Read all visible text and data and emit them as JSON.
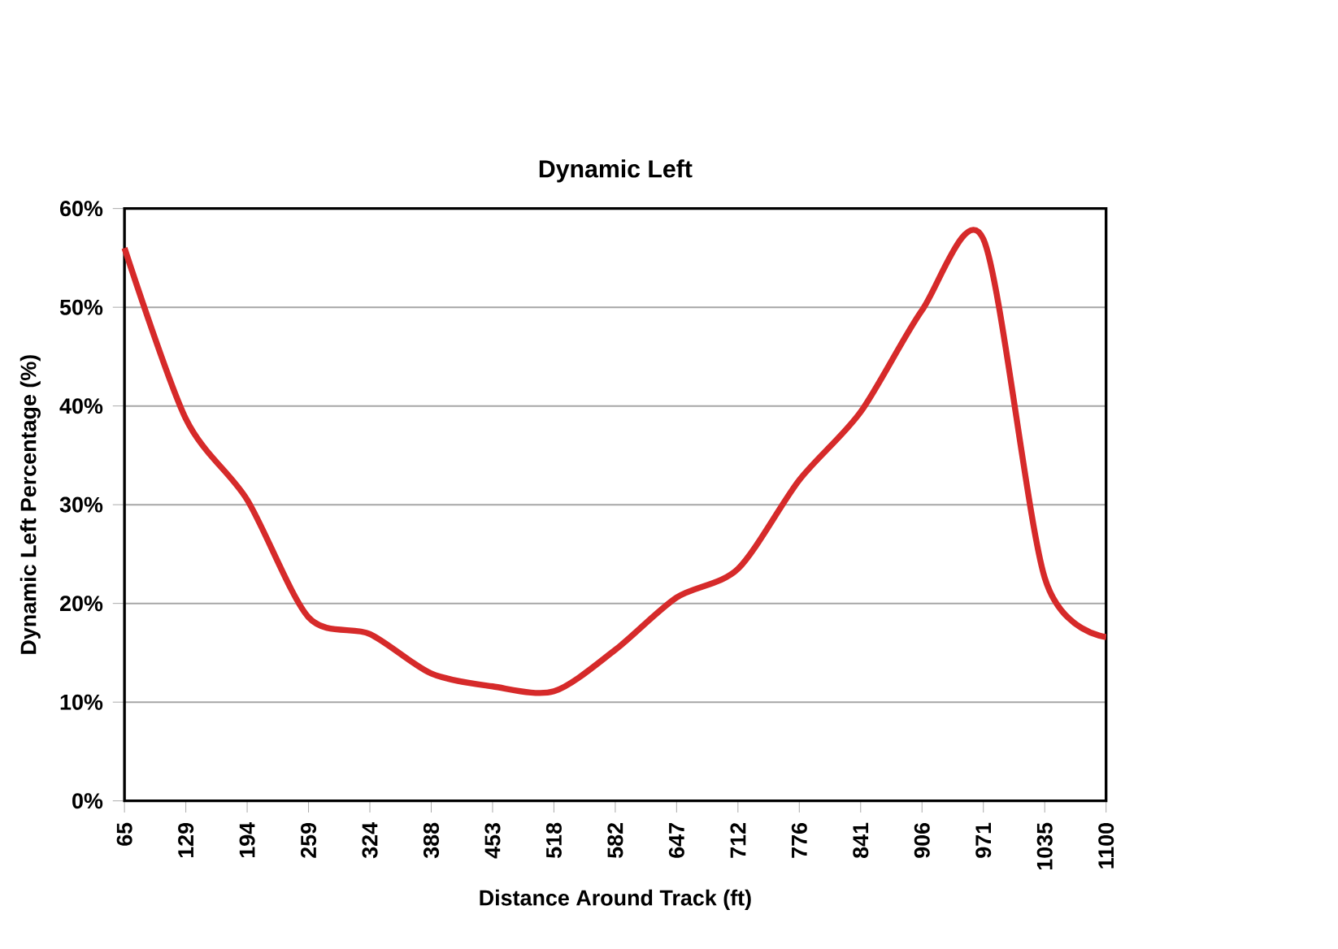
{
  "chart_data": {
    "type": "line",
    "title": "Dynamic Left",
    "xlabel": "Distance Around Track (ft)",
    "ylabel": "Dynamic Left Percentage (%)",
    "categories": [
      "65",
      "129",
      "194",
      "259",
      "324",
      "388",
      "453",
      "518",
      "582",
      "647",
      "712",
      "776",
      "841",
      "906",
      "971",
      "1035",
      "1100"
    ],
    "series": [
      {
        "color": "#d62a2a",
        "values": [
          56,
          38.7,
          30.5,
          18.6,
          16.9,
          12.9,
          11.6,
          11.1,
          15.3,
          20.6,
          23.5,
          32.5,
          39.4,
          49.7,
          56.9,
          22.6,
          16.6
        ]
      }
    ],
    "ylim": [
      0,
      60
    ],
    "yticks": [
      {
        "value": 0,
        "label": "0%"
      },
      {
        "value": 10,
        "label": "10%"
      },
      {
        "value": 20,
        "label": "20%"
      },
      {
        "value": 30,
        "label": "30%"
      },
      {
        "value": 40,
        "label": "40%"
      },
      {
        "value": 50,
        "label": "50%"
      },
      {
        "value": 60,
        "label": "60%"
      }
    ],
    "grid": "y",
    "marker": "none",
    "line_style": "solid"
  }
}
